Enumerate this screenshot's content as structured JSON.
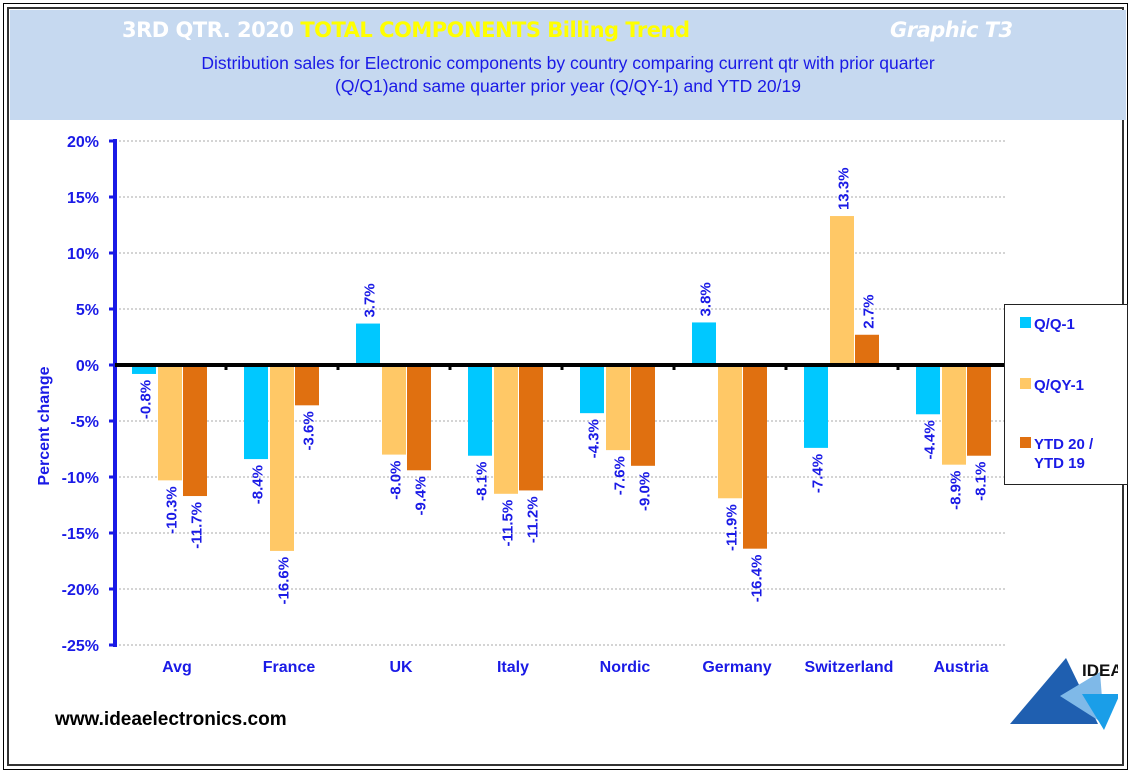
{
  "header": {
    "title_part1": "3RD QTR. 2020 ",
    "title_part2": "TOTAL COMPONENTS  Billing Trend",
    "graphic_label": "Graphic T3",
    "subtitle_line1": "Distribution  sales for Electronic components by country comparing  current qtr with prior quarter",
    "subtitle_line2": "(Q/Q1)and  same quarter prior year (Q/QY-1)  and YTD  20/19"
  },
  "footer": {
    "url": "www.ideaelectronics.com",
    "logo_text": "IDEA"
  },
  "colors": {
    "header_bg": "#c6d9f0",
    "text_blue": "#1a1ae6",
    "series_qq": "#00c8ff",
    "series_qqy": "#ffc866",
    "series_ytd": "#e07010"
  },
  "chart_data": {
    "type": "bar",
    "title": "3RD QTR. 2020 TOTAL COMPONENTS Billing Trend",
    "xlabel": "",
    "ylabel": "Percent change",
    "ylim": [
      -25,
      20
    ],
    "yticks": [
      20,
      15,
      10,
      5,
      0,
      -5,
      -10,
      -15,
      -20,
      -25
    ],
    "ytick_labels": [
      "20%",
      "15%",
      "10%",
      "5%",
      "0%",
      "-5%",
      "-10%",
      "-15%",
      "-20%",
      "-25%"
    ],
    "grid": true,
    "legend_position": "right",
    "categories": [
      "Avg",
      "France",
      "UK",
      "Italy",
      "Nordic",
      "Germany",
      "Switzerland",
      "Austria"
    ],
    "series": [
      {
        "name": "Q/Q-1",
        "color": "#00c8ff",
        "values": [
          -0.8,
          -8.4,
          3.7,
          -8.1,
          -4.3,
          3.8,
          -7.4,
          -4.4
        ],
        "labels": [
          "-0.8%",
          "-8.4%",
          "3.7%",
          "-8.1%",
          "-4.3%",
          "3.8%",
          "-7.4%",
          "-4.4%"
        ]
      },
      {
        "name": "Q/QY-1",
        "color": "#ffc866",
        "values": [
          -10.3,
          -16.6,
          -8.0,
          -11.5,
          -7.6,
          -11.9,
          13.3,
          -8.9
        ],
        "labels": [
          "-10.3%",
          "-16.6%",
          "-8.0%",
          "-11.5%",
          "-7.6%",
          "-11.9%",
          "13.3%",
          "-8.9%"
        ]
      },
      {
        "name": "YTD 20 / YTD 19",
        "color": "#e07010",
        "values": [
          -11.7,
          -3.6,
          -9.4,
          -11.2,
          -9.0,
          -16.4,
          2.7,
          -8.1
        ],
        "labels": [
          "-11.7%",
          "-3.6%",
          "-9.4%",
          "-11.2%",
          "-9.0%",
          "-16.4%",
          "2.7%",
          "-8.1%"
        ]
      }
    ],
    "legend": [
      {
        "line1": "Q/Q-1",
        "line2": ""
      },
      {
        "line1": "Q/QY-1",
        "line2": ""
      },
      {
        "line1": "YTD 20 /",
        "line2": "YTD 19"
      }
    ]
  }
}
